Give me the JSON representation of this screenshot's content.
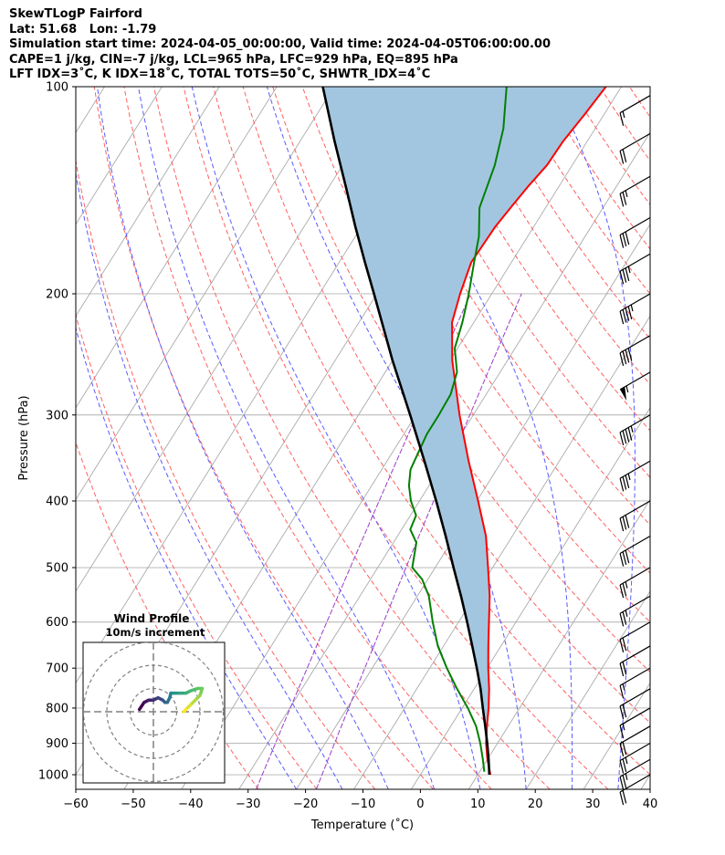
{
  "header": {
    "line1": "SkewTLogP Fairford",
    "line2": "Lat: 51.68   Lon: -1.79",
    "line3": "Simulation start time: 2024-04-05_00:00:00, Valid time: 2024-04-05T06:00:00.00",
    "line4": "CAPE=1 j/kg, CIN=-7 j/kg, LCL=965 hPa, LFC=929 hPa, EQ=895 hPa",
    "line5": "LFT IDX=3˚C, K IDX=18˚C, TOTAL TOTS=50˚C, SHWTR_IDX=4˚C"
  },
  "chart_data": {
    "type": "line",
    "chart_kind": "skew-T log-P diagram",
    "xlabel": "Temperature (˚C)",
    "ylabel": "Pressure (hPa)",
    "xlim": [
      -60,
      40
    ],
    "ylim": [
      1050,
      100
    ],
    "y_scale": "log",
    "x_ticks": [
      "−60",
      "−50",
      "−40",
      "−30",
      "−20",
      "−10",
      "0",
      "10",
      "20",
      "30",
      "40"
    ],
    "x_tick_values": [
      -60,
      -50,
      -40,
      -30,
      -20,
      -10,
      0,
      10,
      20,
      30,
      40
    ],
    "y_ticks": [
      "100",
      "200",
      "300",
      "400",
      "500",
      "600",
      "700",
      "800",
      "900",
      "1000"
    ],
    "y_tick_values": [
      100,
      200,
      300,
      400,
      500,
      600,
      700,
      800,
      900,
      1000
    ],
    "grid": true,
    "skew_deg_per_decade": 75,
    "series": [
      {
        "role": "temperature",
        "color": "#ff0000",
        "points": [
          [
            1000,
            12.2
          ],
          [
            950,
            10.0
          ],
          [
            900,
            8.0
          ],
          [
            850,
            6.3
          ],
          [
            800,
            4.6
          ],
          [
            750,
            2.6
          ],
          [
            700,
            0.2
          ],
          [
            650,
            -2.2
          ],
          [
            600,
            -4.7
          ],
          [
            550,
            -7.4
          ],
          [
            500,
            -10.8
          ],
          [
            450,
            -14.6
          ],
          [
            400,
            -19.8
          ],
          [
            350,
            -25.8
          ],
          [
            300,
            -32.4
          ],
          [
            250,
            -39.6
          ],
          [
            220,
            -43.8
          ],
          [
            200,
            -45.5
          ],
          [
            180,
            -47.0
          ],
          [
            160,
            -46.7
          ],
          [
            150,
            -46.1
          ],
          [
            140,
            -45.4
          ],
          [
            130,
            -44.4
          ],
          [
            120,
            -44.2
          ],
          [
            110,
            -43.4
          ],
          [
            100,
            -42.7
          ]
        ]
      },
      {
        "role": "dewpoint",
        "color": "#008000",
        "points": [
          [
            990,
            10.8
          ],
          [
            950,
            9.2
          ],
          [
            900,
            7.0
          ],
          [
            850,
            4.4
          ],
          [
            800,
            1.0
          ],
          [
            750,
            -3.0
          ],
          [
            700,
            -7.0
          ],
          [
            650,
            -11.0
          ],
          [
            600,
            -14.5
          ],
          [
            550,
            -18.0
          ],
          [
            520,
            -21.0
          ],
          [
            500,
            -24.0
          ],
          [
            460,
            -26.0
          ],
          [
            440,
            -28.5
          ],
          [
            420,
            -29.0
          ],
          [
            400,
            -31.5
          ],
          [
            380,
            -33.5
          ],
          [
            360,
            -35.0
          ],
          [
            320,
            -36.0
          ],
          [
            300,
            -36.0
          ],
          [
            280,
            -36.2
          ],
          [
            260,
            -37.5
          ],
          [
            240,
            -40.5
          ],
          [
            220,
            -42.0
          ],
          [
            200,
            -44.0
          ],
          [
            180,
            -46.5
          ],
          [
            165,
            -48.5
          ],
          [
            150,
            -51.5
          ],
          [
            130,
            -53.5
          ],
          [
            115,
            -56.0
          ],
          [
            100,
            -60.0
          ]
        ]
      },
      {
        "role": "parcel",
        "color": "#000000",
        "points": [
          [
            1000,
            12.0
          ],
          [
            950,
            10.2
          ],
          [
            900,
            8.2
          ],
          [
            850,
            6.0
          ],
          [
            800,
            3.6
          ],
          [
            750,
            1.1
          ],
          [
            700,
            -1.8
          ],
          [
            650,
            -5.0
          ],
          [
            600,
            -8.5
          ],
          [
            550,
            -12.4
          ],
          [
            500,
            -16.8
          ],
          [
            450,
            -21.6
          ],
          [
            400,
            -27.1
          ],
          [
            350,
            -33.5
          ],
          [
            300,
            -41.0
          ],
          [
            250,
            -50.0
          ],
          [
            200,
            -60.5
          ],
          [
            180,
            -65.5
          ],
          [
            160,
            -71.0
          ],
          [
            140,
            -77.0
          ],
          [
            120,
            -84.0
          ],
          [
            100,
            -92.0
          ]
        ]
      }
    ],
    "cape_shading_color": "#a3c6e0",
    "wind_barbs": [
      {
        "p": 1000,
        "spd": 20,
        "dir": 300
      },
      {
        "p": 950,
        "spd": 25,
        "dir": 300
      },
      {
        "p": 900,
        "spd": 25,
        "dir": 300
      },
      {
        "p": 850,
        "spd": 20,
        "dir": 300
      },
      {
        "p": 800,
        "spd": 15,
        "dir": 300
      },
      {
        "p": 750,
        "spd": 20,
        "dir": 300
      },
      {
        "p": 700,
        "spd": 15,
        "dir": 300
      },
      {
        "p": 650,
        "spd": 20,
        "dir": 300
      },
      {
        "p": 600,
        "spd": 20,
        "dir": 300
      },
      {
        "p": 550,
        "spd": 25,
        "dir": 300
      },
      {
        "p": 500,
        "spd": 25,
        "dir": 300
      },
      {
        "p": 450,
        "spd": 30,
        "dir": 300
      },
      {
        "p": 400,
        "spd": 30,
        "dir": 300
      },
      {
        "p": 350,
        "spd": 35,
        "dir": 300
      },
      {
        "p": 300,
        "spd": 45,
        "dir": 300
      },
      {
        "p": 260,
        "spd": 55,
        "dir": 300
      },
      {
        "p": 230,
        "spd": 40,
        "dir": 300
      },
      {
        "p": 200,
        "spd": 45,
        "dir": 300
      },
      {
        "p": 175,
        "spd": 35,
        "dir": 300
      },
      {
        "p": 155,
        "spd": 30,
        "dir": 300
      },
      {
        "p": 135,
        "spd": 25,
        "dir": 300
      },
      {
        "p": 117,
        "spd": 20,
        "dir": 300
      },
      {
        "p": 103,
        "spd": 15,
        "dir": 300
      }
    ],
    "inset": {
      "title": "Wind Profile",
      "subtitle": "10m/s increment",
      "ring_step_ms": 10,
      "ring_count": 3,
      "hodograph": [
        [
          -6.0,
          1.0
        ],
        [
          -4.0,
          4.0
        ],
        [
          -2.0,
          5.0
        ],
        [
          0.0,
          5.0
        ],
        [
          2.0,
          6.0
        ],
        [
          4.0,
          5.0
        ],
        [
          5.0,
          4.0
        ],
        [
          6.0,
          4.0
        ],
        [
          7.0,
          6.0
        ],
        [
          7.5,
          8.0
        ],
        [
          9.0,
          8.0
        ],
        [
          11.0,
          8.0
        ],
        [
          14.0,
          8.0
        ],
        [
          16.0,
          9.0
        ],
        [
          19.0,
          10.0
        ],
        [
          21.0,
          10.0
        ],
        [
          20.0,
          7.0
        ],
        [
          18.0,
          5.0
        ],
        [
          16.0,
          3.0
        ],
        [
          14.0,
          1.0
        ],
        [
          13.0,
          0.0
        ]
      ]
    }
  }
}
